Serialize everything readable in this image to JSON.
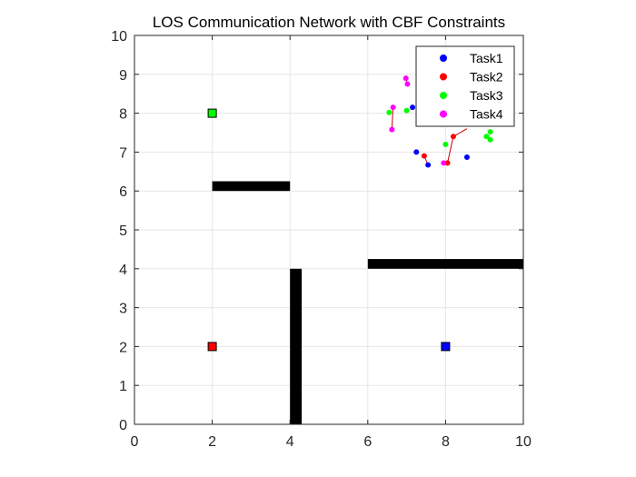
{
  "chart_data": {
    "type": "scatter",
    "title": "LOS Communication Network with CBF Constraints",
    "xlabel": "",
    "ylabel": "",
    "xlim": [
      0,
      10
    ],
    "ylim": [
      0,
      10
    ],
    "xticks": [
      "0",
      "2",
      "4",
      "6",
      "8",
      "10"
    ],
    "yticks": [
      "0",
      "1",
      "2",
      "3",
      "4",
      "5",
      "6",
      "7",
      "8",
      "9",
      "10"
    ],
    "grid": true,
    "legend_position": "top-right",
    "series": [
      {
        "name": "Task1",
        "color": "#0000ff",
        "points": [
          [
            7.15,
            8.15
          ],
          [
            7.25,
            7.0
          ],
          [
            7.55,
            6.67
          ],
          [
            8.55,
            6.87
          ]
        ]
      },
      {
        "name": "Task2",
        "color": "#ff0000",
        "points": [
          [
            7.45,
            6.9
          ],
          [
            8.05,
            6.72
          ],
          [
            8.2,
            7.4
          ]
        ]
      },
      {
        "name": "Task3",
        "color": "#00ff00",
        "points": [
          [
            6.55,
            8.02
          ],
          [
            7.0,
            8.07
          ],
          [
            8.0,
            7.2
          ],
          [
            9.05,
            7.4
          ],
          [
            9.15,
            7.52
          ],
          [
            9.15,
            7.32
          ]
        ]
      },
      {
        "name": "Task4",
        "color": "#ff00ff",
        "points": [
          [
            6.65,
            8.15
          ],
          [
            6.62,
            7.58
          ],
          [
            6.98,
            8.9
          ],
          [
            7.02,
            8.75
          ],
          [
            7.95,
            6.72
          ]
        ]
      }
    ],
    "obstacles": [
      {
        "x": [
          2.0,
          4.0
        ],
        "y": [
          6.0,
          6.25
        ]
      },
      {
        "x": [
          4.0,
          4.3
        ],
        "y": [
          0.0,
          4.0
        ]
      },
      {
        "x": [
          6.0,
          10.0
        ],
        "y": [
          4.0,
          4.25
        ]
      }
    ],
    "targets": [
      {
        "x": 2,
        "y": 8,
        "color": "#00ff00"
      },
      {
        "x": 2,
        "y": 2,
        "color": "#ff0000"
      },
      {
        "x": 8,
        "y": 2,
        "color": "#0000ff"
      }
    ],
    "links": [
      [
        [
          7.45,
          6.9
        ],
        [
          7.55,
          6.67
        ]
      ],
      [
        [
          8.05,
          6.72
        ],
        [
          8.2,
          7.4
        ]
      ],
      [
        [
          6.62,
          7.58
        ],
        [
          6.65,
          8.15
        ]
      ],
      [
        [
          6.98,
          8.9
        ],
        [
          7.02,
          8.75
        ]
      ],
      [
        [
          8.2,
          7.4
        ],
        [
          8.55,
          7.6
        ]
      ]
    ]
  }
}
